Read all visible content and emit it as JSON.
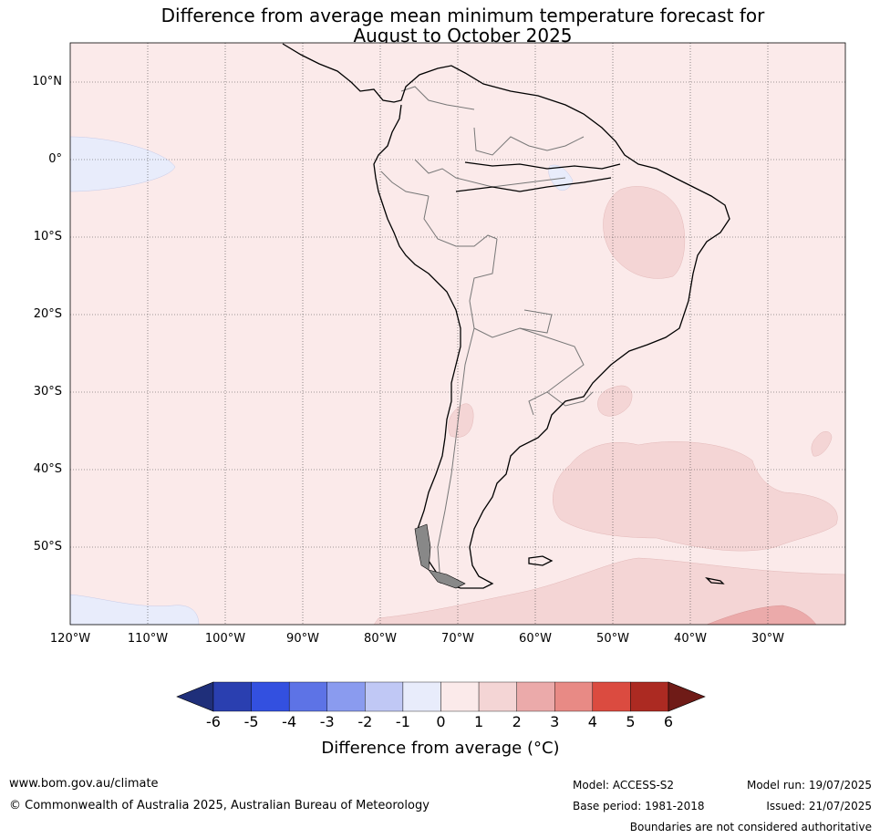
{
  "title_line1": "Difference from average mean minimum temperature forecast for",
  "title_line2": "August to October 2025",
  "lat_labels": [
    "10°N",
    "0°",
    "10°S",
    "20°S",
    "30°S",
    "40°S",
    "50°S"
  ],
  "lon_labels": [
    "120°W",
    "110°W",
    "100°W",
    "90°W",
    "80°W",
    "70°W",
    "60°W",
    "50°W",
    "40°W",
    "30°W"
  ],
  "colorbar": {
    "ticks": [
      "-6",
      "-5",
      "-4",
      "-3",
      "-2",
      "-1",
      "0",
      "1",
      "2",
      "3",
      "4",
      "5",
      "6"
    ],
    "colors": [
      "#1f2f7a",
      "#2a3fb0",
      "#3350e0",
      "#5d73e6",
      "#8a9bef",
      "#c0c8f5",
      "#e8ecfb",
      "#fbeaea",
      "#f4d5d5",
      "#ebaaaa",
      "#e88a85",
      "#db4b40",
      "#ac2a22",
      "#6f1b17"
    ],
    "label": "Difference from average (°C)"
  },
  "footer": {
    "website": "www.bom.gov.au/climate",
    "copyright": "© Commonwealth of Australia 2025, Australian Bureau of Meteorology",
    "model": "Model: ACCESS-S2",
    "base_period": "Base period: 1981-2018",
    "model_run": "Model run: 19/07/2025",
    "issued": "Issued: 21/07/2025",
    "disclaimer": "Boundaries are not considered authoritative"
  }
}
